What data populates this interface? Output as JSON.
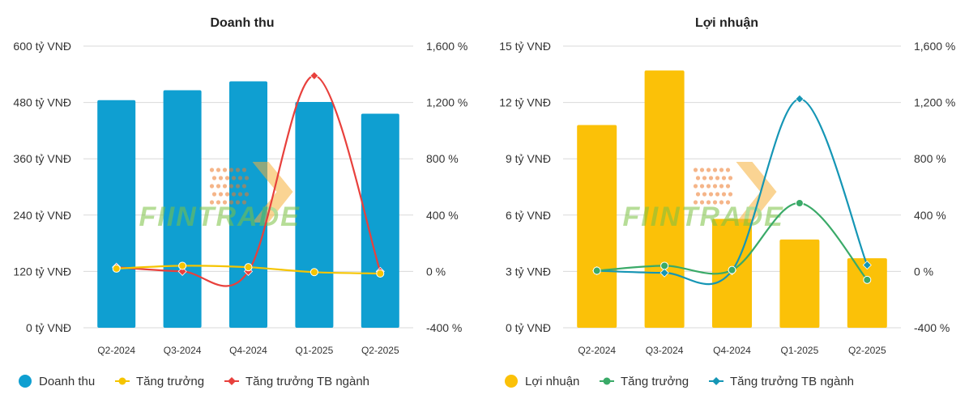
{
  "watermark": "FIINTRADE",
  "charts": [
    {
      "title": "Doanh thu",
      "categories": [
        "Q2-2024",
        "Q3-2024",
        "Q4-2024",
        "Q1-2025",
        "Q2-2025"
      ],
      "left_ticks": [
        "0 tỷ VNĐ",
        "120 tỷ VNĐ",
        "240 tỷ VNĐ",
        "360 tỷ VNĐ",
        "480 tỷ VNĐ",
        "600 tỷ VNĐ"
      ],
      "right_ticks": [
        "-400 %",
        "0 %",
        "400 %",
        "800 %",
        "1,200 %",
        "1,600 %"
      ],
      "legend": [
        "Doanh thu",
        "Tăng trưởng",
        "Tăng trưởng TB ngành"
      ]
    },
    {
      "title": "Lợi nhuận",
      "categories": [
        "Q2-2024",
        "Q3-2024",
        "Q4-2024",
        "Q1-2025",
        "Q2-2025"
      ],
      "left_ticks": [
        "0 tỷ VNĐ",
        "3 tỷ VNĐ",
        "6 tỷ VNĐ",
        "9 tỷ VNĐ",
        "12 tỷ VNĐ",
        "15 tỷ VNĐ"
      ],
      "right_ticks": [
        "-400 %",
        "0 %",
        "400 %",
        "800 %",
        "1,200 %",
        "1,600 %"
      ],
      "legend": [
        "Lợi nhuận",
        "Tăng trưởng",
        "Tăng trưởng TB ngành"
      ]
    }
  ],
  "chart_data": [
    {
      "type": "bar",
      "title": "Doanh thu",
      "categories": [
        "Q2-2024",
        "Q3-2024",
        "Q4-2024",
        "Q1-2025",
        "Q2-2025"
      ],
      "ylim": [
        0,
        600
      ],
      "y2lim": [
        -400,
        1600
      ],
      "grid": true,
      "legend_position": "bottom",
      "colors": {
        "bar": "#0f9fd1",
        "growth": "#f5c400",
        "industry": "#e8403c"
      },
      "series": [
        {
          "name": "Doanh thu",
          "kind": "bar",
          "axis": "left",
          "values": [
            485,
            506,
            525,
            481,
            456
          ]
        },
        {
          "name": "Tăng trưởng",
          "kind": "line",
          "axis": "right",
          "marker": "circle",
          "values": [
            20,
            40,
            30,
            -5,
            -15
          ]
        },
        {
          "name": "Tăng trưởng TB ngành",
          "kind": "line",
          "axis": "right",
          "marker": "diamond",
          "values": [
            30,
            0,
            0,
            1390,
            0
          ]
        }
      ]
    },
    {
      "type": "bar",
      "title": "Lợi nhuận",
      "categories": [
        "Q2-2024",
        "Q3-2024",
        "Q4-2024",
        "Q1-2025",
        "Q2-2025"
      ],
      "ylim": [
        0,
        15
      ],
      "y2lim": [
        -400,
        1600
      ],
      "grid": true,
      "legend_position": "bottom",
      "colors": {
        "bar": "#fbc108",
        "growth": "#3aaa68",
        "industry": "#1596b5"
      },
      "series": [
        {
          "name": "Lợi nhuận",
          "kind": "bar",
          "axis": "left",
          "values": [
            10.8,
            13.7,
            5.8,
            4.7,
            3.7
          ]
        },
        {
          "name": "Tăng trưởng",
          "kind": "line",
          "axis": "right",
          "marker": "circle",
          "values": [
            5,
            40,
            10,
            485,
            -60
          ]
        },
        {
          "name": "Tăng trưởng TB ngành",
          "kind": "line",
          "axis": "right",
          "marker": "diamond",
          "values": [
            5,
            -10,
            5,
            1225,
            45
          ]
        }
      ]
    }
  ]
}
